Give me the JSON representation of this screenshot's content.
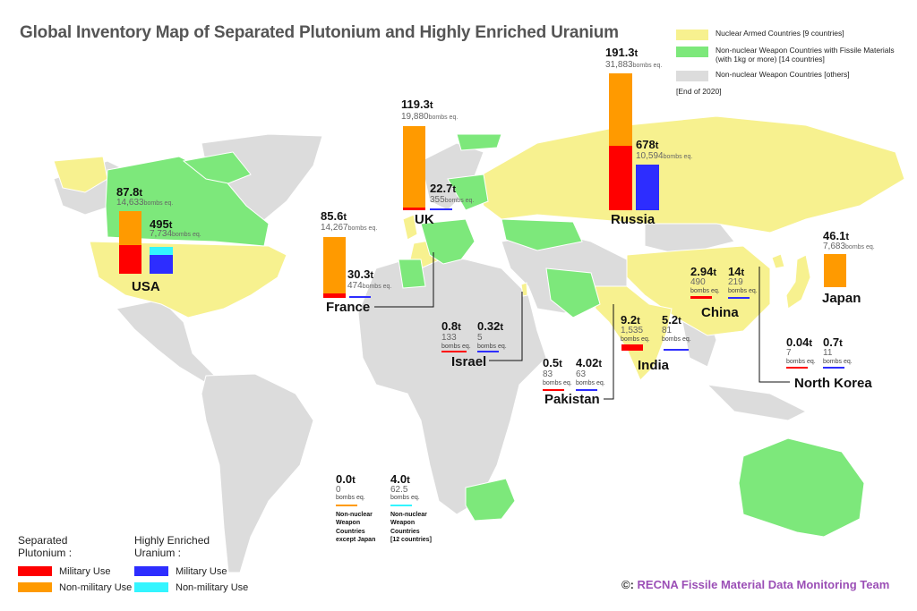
{
  "title": "Global Inventory Map of Separated Plutonium and Highly Enriched Uranium",
  "legend_status": {
    "items": [
      {
        "label": "Nuclear Armed Countries [9 countries]",
        "color": "#f7f18f"
      },
      {
        "label": "Non-nuclear Weapon Countries with Fissile Materials",
        "label2": "(with 1kg or more) [14 countries]",
        "color": "#7de87b"
      },
      {
        "label": "Non-nuclear Weapon Countries [others]",
        "color": "#dcdcdc"
      }
    ],
    "as_of": "[End of 2020]"
  },
  "legend_materials": {
    "pu_title_1": "Separated",
    "pu_title_2": "Plutonium :",
    "heu_title_1": "Highly Enriched",
    "heu_title_2": "Uranium :",
    "military": "Military Use",
    "nonmilitary": "Non-military Use",
    "colors": {
      "pu_mil": "#ff0000",
      "pu_nonmil": "#ff9a00",
      "heu_mil": "#2d2dff",
      "heu_nonmil": "#33f5ff"
    }
  },
  "countries": {
    "usa": {
      "name": "USA",
      "pu": "87.8",
      "pu_bombs": "14,633",
      "heu": "495",
      "heu_bombs": "7,734"
    },
    "france": {
      "name": "France",
      "pu": "85.6",
      "pu_bombs": "14,267",
      "heu": "30.3",
      "heu_bombs": "474"
    },
    "uk": {
      "name": "UK",
      "pu": "119.3",
      "pu_bombs": "19,880",
      "heu": "22.7",
      "heu_bombs": "355"
    },
    "russia": {
      "name": "Russia",
      "pu": "191.3",
      "pu_bombs": "31,883",
      "heu": "678",
      "heu_bombs": "10,594"
    },
    "japan": {
      "name": "Japan",
      "pu": "46.1",
      "pu_bombs": "7,683"
    },
    "china": {
      "name": "China",
      "pu": "2.94",
      "pu_bombs": "490",
      "heu": "14",
      "heu_bombs": "219"
    },
    "israel": {
      "name": "Israel",
      "pu": "0.8",
      "pu_bombs": "133",
      "heu": "0.32",
      "heu_bombs": "5"
    },
    "india": {
      "name": "India",
      "pu": "9.2",
      "pu_bombs": "1,535",
      "heu": "5.2",
      "heu_bombs": "81"
    },
    "pakistan": {
      "name": "Pakistan",
      "pu": "0.5",
      "pu_bombs": "83",
      "heu": "4.02",
      "heu_bombs": "63"
    },
    "northkorea": {
      "name": "North Korea",
      "pu": "0.04",
      "pu_bombs": "7",
      "heu": "0.7",
      "heu_bombs": "11"
    }
  },
  "non_nuclear": {
    "pu": "0.0",
    "pu_bombs": "0",
    "heu": "4.0",
    "heu_bombs": "62.5",
    "pu_note": [
      "Non-nuclear",
      "Weapon",
      "Countries",
      "except Japan"
    ],
    "heu_note": [
      "Non-nuclear",
      "Weapon",
      "Countries",
      "[12 countries]"
    ]
  },
  "units": {
    "t": "t",
    "bombs": "bombs eq."
  },
  "credit": {
    "symbol": "©:",
    "text": "RECNA Fissile Material Data Monitoring Team"
  },
  "chart_data": {
    "type": "bar",
    "title": "Global Inventory Map of Separated Plutonium and Highly Enriched Uranium",
    "categories": [
      "USA",
      "France",
      "UK",
      "Russia",
      "Japan",
      "China",
      "Israel",
      "India",
      "Pakistan",
      "North Korea",
      "Non-nuclear Weapon Countries"
    ],
    "series": [
      {
        "name": "Separated Plutonium (t)",
        "values": [
          87.8,
          85.6,
          119.3,
          191.3,
          46.1,
          2.94,
          0.8,
          9.2,
          0.5,
          0.04,
          0.0
        ]
      },
      {
        "name": "Highly Enriched Uranium (t)",
        "values": [
          495,
          30.3,
          22.7,
          678,
          null,
          14,
          0.32,
          5.2,
          4.02,
          0.7,
          4.0
        ]
      }
    ]
  }
}
